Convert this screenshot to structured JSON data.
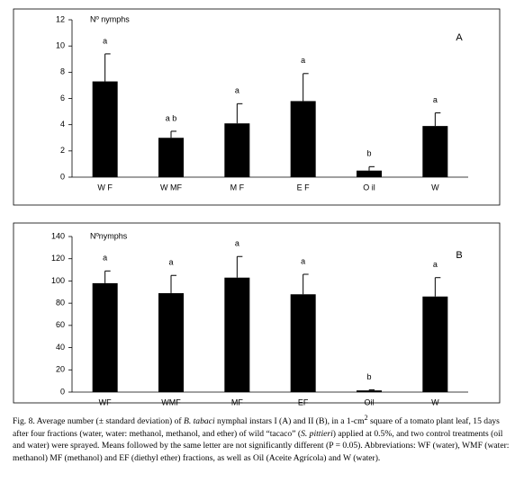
{
  "chart_data": [
    {
      "type": "bar",
      "panel": "A",
      "y_label": "Nº nymphs",
      "categories": [
        "W F",
        "W MF",
        "M F",
        "E F",
        "O il",
        "W"
      ],
      "values": [
        7.3,
        3.0,
        4.1,
        5.8,
        0.5,
        3.9
      ],
      "errors": [
        2.1,
        0.5,
        1.5,
        2.1,
        0.3,
        1.0
      ],
      "letters": [
        "a",
        "a b",
        "a",
        "a",
        "b",
        "a"
      ],
      "color": "#000000",
      "ylim": [
        0,
        12
      ],
      "yticks": [
        0,
        2,
        4,
        6,
        8,
        10,
        12
      ]
    },
    {
      "type": "bar",
      "panel": "B",
      "y_label": "Nºnymphs",
      "categories": [
        "WF",
        "WMF",
        "MF",
        "EF",
        "Oil",
        "W"
      ],
      "values": [
        98,
        89,
        103,
        88,
        1.5,
        86
      ],
      "errors": [
        11,
        16,
        19,
        18,
        0.5,
        17
      ],
      "letters": [
        "a",
        "a",
        "a",
        "a",
        "b",
        "a"
      ],
      "color": "#000000",
      "ylim": [
        0,
        140
      ],
      "yticks": [
        0,
        20,
        40,
        60,
        80,
        100,
        120,
        140
      ]
    }
  ],
  "caption": [
    "Fig. 8. Average number (± standard deviation) of ",
    "B. tabaci",
    " nymphal instars I (A) and II (B), in a 1-cm",
    "2",
    " square of a tomato plant leaf, 15 days after four fractions (water, water: methanol, methanol, and ether) of wild “tacaco” (",
    "S. pittieri",
    ") applied at 0.5%, and two control treatments (oil and water) were sprayed. Means followed by the same letter are not significantly different (P = 0.05). Abbreviations: WF (water), WMF (water: methanol) MF (methanol) and EF (diethyl ether) fractions, as well as Oil (Aceite Agrícola) and W (water)."
  ]
}
